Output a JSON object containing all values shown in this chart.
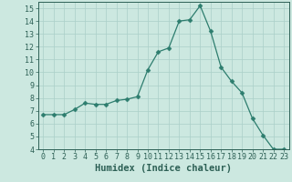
{
  "title": "",
  "xlabel": "Humidex (Indice chaleur)",
  "ylabel": "",
  "x_values": [
    0,
    1,
    2,
    3,
    4,
    5,
    6,
    7,
    8,
    9,
    10,
    11,
    12,
    13,
    14,
    15,
    16,
    17,
    18,
    19,
    20,
    21,
    22,
    23
  ],
  "y_values": [
    6.7,
    6.7,
    6.7,
    7.1,
    7.6,
    7.5,
    7.5,
    7.8,
    7.9,
    8.1,
    10.2,
    11.6,
    11.9,
    14.0,
    14.1,
    15.2,
    13.2,
    10.4,
    9.3,
    8.4,
    6.4,
    5.1,
    4.0,
    4.0
  ],
  "line_color": "#2d7d6e",
  "marker": "D",
  "marker_size": 2.5,
  "bg_color": "#cce8e0",
  "grid_color": "#aacfc8",
  "ylim": [
    4,
    15.5
  ],
  "xlim": [
    -0.5,
    23.5
  ],
  "yticks": [
    4,
    5,
    6,
    7,
    8,
    9,
    10,
    11,
    12,
    13,
    14,
    15
  ],
  "xticks": [
    0,
    1,
    2,
    3,
    4,
    5,
    6,
    7,
    8,
    9,
    10,
    11,
    12,
    13,
    14,
    15,
    16,
    17,
    18,
    19,
    20,
    21,
    22,
    23
  ],
  "tick_label_fontsize": 6,
  "xlabel_fontsize": 7.5,
  "label_color": "#2d6055"
}
